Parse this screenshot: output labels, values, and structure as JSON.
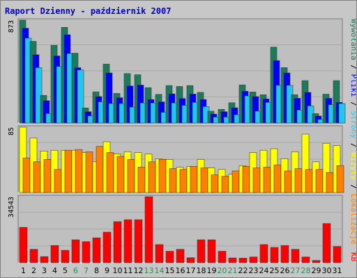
{
  "chart_data": {
    "title": "Raport Dzienny -  październik 2007",
    "categories": [
      "1",
      "2",
      "3",
      "4",
      "5",
      "6",
      "7",
      "8",
      "9",
      "10",
      "11",
      "12",
      "13",
      "14",
      "15",
      "16",
      "17",
      "18",
      "19",
      "20",
      "21",
      "22",
      "23",
      "24",
      "25",
      "26",
      "27",
      "28",
      "29",
      "30",
      "31"
    ],
    "weekend_days": [
      6,
      7,
      13,
      14,
      20,
      21,
      27,
      28
    ],
    "colors": {
      "background": "#c7c7c7",
      "plot_bg": "#bfbfbf",
      "grid": "#a8a8a8",
      "weekday_label": "#000000",
      "weekend_label": "#2e8b57"
    },
    "panels": [
      {
        "id": "visits",
        "type": "bar",
        "ymax_label": "873",
        "ylim": [
          0,
          873
        ],
        "series": [
          {
            "name": "Wywołania",
            "color": "#1d7a5a",
            "values": [
              873,
              693,
              235,
              660,
              812,
              593,
              128,
              265,
              500,
              251,
              420,
              410,
              300,
              243,
              318,
              310,
              318,
              260,
              100,
              116,
              172,
              323,
              263,
              240,
              644,
              470,
              240,
              360,
              80,
              245,
              360
            ]
          },
          {
            "name": "Pliki",
            "color": "#0000ff",
            "values": [
              805,
              580,
              190,
              570,
              750,
              470,
              96,
              225,
              425,
              215,
              315,
              322,
              200,
              180,
              248,
              208,
              246,
              200,
              76,
              96,
              130,
              270,
              225,
              205,
              530,
              425,
              210,
              260,
              60,
              210,
              175
            ]
          },
          {
            "name": "Strony",
            "color": "#1ec8f0",
            "values": [
              720,
              470,
              80,
              480,
              590,
              450,
              60,
              180,
              165,
              165,
              135,
              170,
              170,
              90,
              170,
              150,
              175,
              140,
              50,
              50,
              70,
              230,
              100,
              175,
              320,
              320,
              110,
              145,
              30,
              155,
              165
            ]
          }
        ]
      },
      {
        "id": "hosts",
        "type": "bar",
        "ymax_label": "85",
        "ylim": [
          0,
          85
        ],
        "series": [
          {
            "name": "Wizyty",
            "color": "#ffff00",
            "values": [
              85,
              71,
              54,
              55,
              55,
              55,
              52,
              40,
              66,
              50,
              53,
              52,
              50,
              44,
              43,
              33,
              34,
              43,
              32,
              30,
              24,
              35,
              52,
              55,
              57,
              44,
              53,
              76,
              40,
              64,
              61
            ]
          },
          {
            "name": "Lokalizacje",
            "color": "#ff8000",
            "values": [
              45,
              40,
              43,
              30,
              55,
              56,
              53,
              60,
              52,
              47,
              43,
              33,
              40,
              43,
              31,
              30,
              34,
              32,
              23,
              21,
              28,
              34,
              32,
              33,
              36,
              28,
              31,
              30,
              30,
              26,
              35
            ]
          }
        ]
      },
      {
        "id": "kb",
        "type": "bar",
        "ymax_label": "34543",
        "ylim": [
          0,
          34543
        ],
        "series": [
          {
            "name": "KB",
            "color": "#ff0000",
            "values": [
              18500,
              7000,
              3200,
              9000,
              6500,
              12000,
              11000,
              13000,
              16000,
              21500,
              22500,
              22500,
              34543,
              9500,
              6000,
              7000,
              2600,
              12000,
              12000,
              6000,
              2500,
              2400,
              3000,
              9500,
              8000,
              9000,
              7000,
              3000,
              1200,
              20500,
              8500
            ]
          }
        ]
      }
    ],
    "legend": [
      {
        "text": "Wywołania",
        "color": "#1d7a5a"
      },
      {
        "text": " / ",
        "color": "#000000"
      },
      {
        "text": "Pliki",
        "color": "#0000ff"
      },
      {
        "text": " / ",
        "color": "#000000"
      },
      {
        "text": "Strony",
        "color": "#1ec8f0"
      },
      {
        "text": " / ",
        "color": "#000000"
      },
      {
        "text": "Wizyty",
        "color": "#ffff00"
      },
      {
        "text": " / ",
        "color": "#000000"
      },
      {
        "text": "Lokalizacje",
        "color": "#ff8000"
      }
    ],
    "legend_kb": {
      "text": "KB",
      "color": "#ff0000"
    }
  }
}
